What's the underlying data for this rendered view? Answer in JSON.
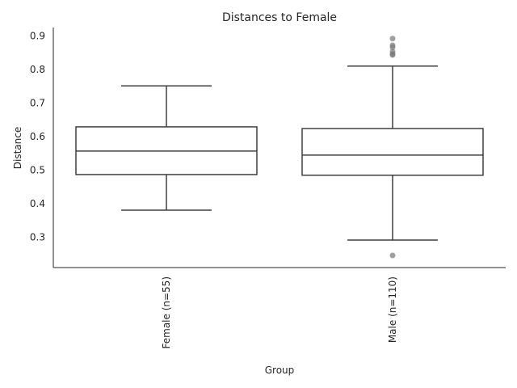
{
  "chart_data": {
    "type": "box",
    "title": "Distances to Female",
    "xlabel": "Group",
    "ylabel": "Distance",
    "ylim": [
      0.21,
      0.925
    ],
    "yticks": [
      "0.3",
      "0.4",
      "0.5",
      "0.6",
      "0.7",
      "0.8",
      "0.9"
    ],
    "grid": false,
    "colors": {
      "box_edge": "#3f3f3f",
      "outlier": "#777777",
      "axis": "#262626"
    },
    "categories": [
      "Female (n=55)",
      "Male (n=110)"
    ],
    "boxes": [
      {
        "label": "Female (n=55)",
        "whisker_low": 0.381,
        "q1": 0.487,
        "median": 0.557,
        "q3": 0.629,
        "whisker_high": 0.751,
        "outliers": []
      },
      {
        "label": "Male (n=110)",
        "whisker_low": 0.292,
        "q1": 0.485,
        "median": 0.545,
        "q3": 0.624,
        "whisker_high": 0.81,
        "outliers": [
          0.246,
          0.843,
          0.846,
          0.853,
          0.866,
          0.872,
          0.892
        ]
      }
    ]
  }
}
